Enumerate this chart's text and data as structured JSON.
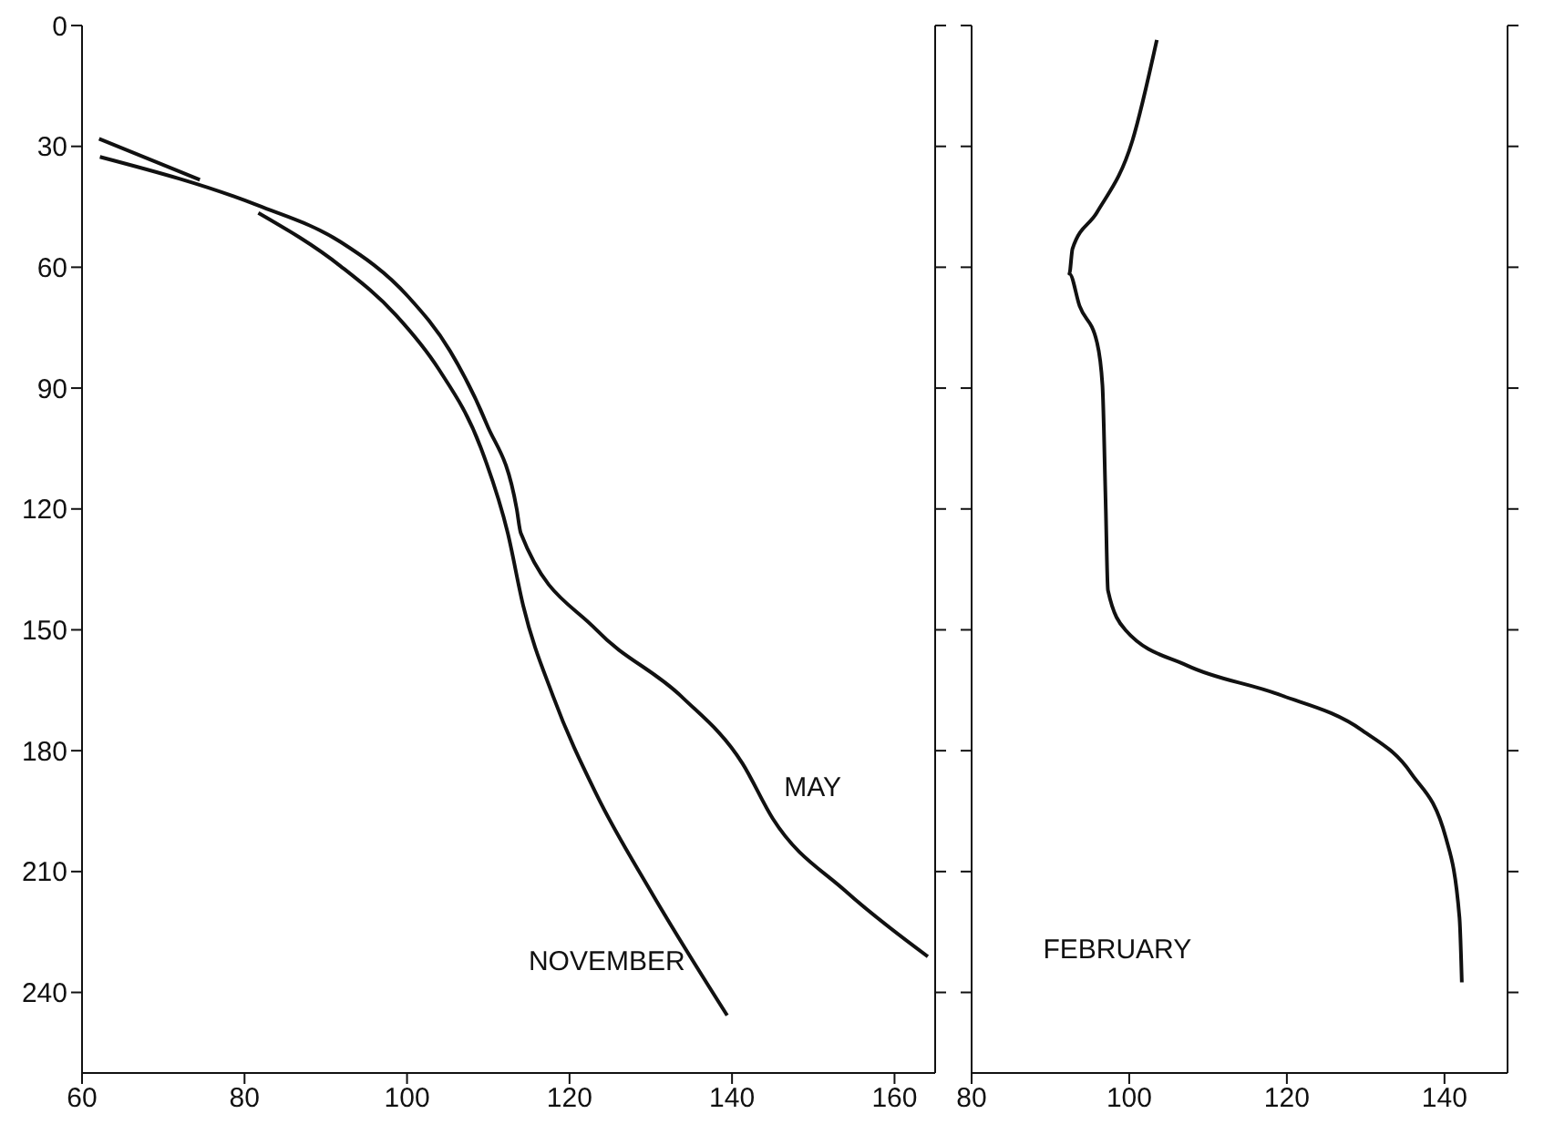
{
  "chart_data": [
    {
      "type": "line",
      "xlim": [
        60,
        165
      ],
      "xticks": [
        60,
        80,
        100,
        120,
        140,
        160
      ],
      "ylim": [
        260,
        0
      ],
      "yticks": [
        0,
        30,
        60,
        90,
        120,
        150,
        180,
        210,
        240
      ],
      "grid": false,
      "legend": false,
      "marker": "none",
      "line_style": "solid",
      "series": [
        {
          "name": "MAY",
          "color": "#111111",
          "x": [
            62.2,
            81.7,
            91.8,
            100.1,
            105.3,
            109.8,
            113.5,
            114,
            123.3,
            133.8,
            141.3,
            145,
            154,
            164.1
          ],
          "values": [
            32.6,
            44.7,
            53.7,
            67.2,
            80.8,
            98.9,
            120,
            126,
            150,
            166.6,
            183.2,
            196.8,
            214.9,
            231.1
          ]
        },
        {
          "name": "NOVEMBER",
          "color": "#111111",
          "x": [
            62.1,
            74.5,
            78,
            81.7,
            91.8,
            98.6,
            103.9,
            109.1,
            112.4,
            114.3,
            118,
            123.3,
            130,
            139.4
          ],
          "values": [
            28.1,
            38.3,
            null,
            46.5,
            59.7,
            71.8,
            85.3,
            104.9,
            126,
            144,
            166.6,
            190.8,
            214.9,
            245.7
          ]
        }
      ]
    },
    {
      "type": "line",
      "xlim": [
        80,
        148
      ],
      "xticks": [
        80,
        100,
        120,
        140
      ],
      "ylim": [
        260,
        0
      ],
      "yticks": [
        0,
        30,
        60,
        90,
        120,
        150,
        180,
        210,
        240
      ],
      "tick_labels": "x",
      "grid": false,
      "legend": false,
      "marker": "none",
      "line_style": "solid",
      "series": [
        {
          "name": "FEBRUARY",
          "color": "#111111",
          "x": [
            103.5,
            100.4,
            95.9,
            92.8,
            92.4,
            93.7,
            95.9,
            96.6,
            97,
            97.3,
            99.5,
            107.4,
            118.9,
            129.6,
            135.8,
            140.2,
            141.9,
            142.2
          ],
          "values": [
            3.6,
            28.6,
            46.4,
            55.4,
            61.6,
            69.6,
            78.6,
            89.3,
            117.9,
            140.2,
            150,
            158.9,
            166,
            175,
            185.7,
            201.8,
            221.4,
            237.5
          ]
        }
      ]
    }
  ]
}
